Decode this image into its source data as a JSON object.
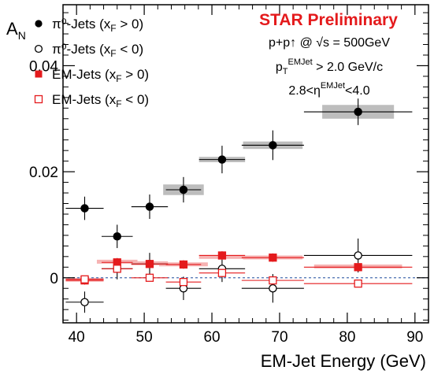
{
  "chart_data": {
    "type": "scatter",
    "title": "",
    "xlabel": "EM-Jet Energy (GeV)",
    "ylabel": "A_N",
    "xlim": [
      38,
      92
    ],
    "ylim": [
      -0.0085,
      0.0515
    ],
    "x_ticks": [
      40,
      50,
      60,
      70,
      80,
      90
    ],
    "y_ticks": [
      0,
      0.02,
      0.04
    ],
    "x_tick_labels": [
      "40",
      "50",
      "60",
      "70",
      "80",
      "90"
    ],
    "y_tick_labels": [
      "0",
      "0.02",
      "0.04"
    ],
    "grid": false,
    "legend_position": "top-left",
    "reference_line": {
      "y": 0,
      "style": "dashed",
      "color": "#4a6fb0"
    },
    "annotations": {
      "title": "STAR Preliminary",
      "title_color": "#e41a1c",
      "line1": "p+p↑ @ √s = 500GeV",
      "line2": "p_T^EMJet > 2.0 GeV/c",
      "line3": "2.8<η^EMJet<4.0"
    },
    "series": [
      {
        "name": "π⁰-Jets (x_F > 0)",
        "legend_main": "π⁰-Jets (x",
        "legend_sub": "F",
        "legend_tail": " > 0)",
        "marker": "circle",
        "filled": true,
        "color": "#000000",
        "points": [
          {
            "x": 41.2,
            "y": 0.0131,
            "xerr": 2.8,
            "yerr": 0.0022
          },
          {
            "x": 46.0,
            "y": 0.0078,
            "xerr": 2.3,
            "yerr": 0.0022
          },
          {
            "x": 50.8,
            "y": 0.0134,
            "xerr": 2.7,
            "yerr": 0.0023
          },
          {
            "x": 55.8,
            "y": 0.0166,
            "xerr": 2.6,
            "yerr": 0.0024
          },
          {
            "x": 61.5,
            "y": 0.0223,
            "xerr": 3.4,
            "yerr": 0.0026
          },
          {
            "x": 69.0,
            "y": 0.025,
            "xerr": 4.6,
            "yerr": 0.0028
          },
          {
            "x": 81.6,
            "y": 0.0313,
            "xerr": 8.0,
            "yerr": 0.0025
          }
        ],
        "sys": [
          {
            "x": 55.8,
            "y": 0.0166,
            "xhalf": 3.0,
            "yhalf": 0.001
          },
          {
            "x": 61.5,
            "y": 0.0223,
            "xhalf": 3.4,
            "yhalf": 0.0005
          },
          {
            "x": 69.0,
            "y": 0.025,
            "xhalf": 4.4,
            "yhalf": 0.0007
          },
          {
            "x": 81.6,
            "y": 0.0313,
            "xhalf": 5.3,
            "yhalf": 0.0013
          }
        ]
      },
      {
        "name": "π⁰-Jets (x_F < 0)",
        "legend_main": "π⁰-Jets (x",
        "legend_sub": "F",
        "legend_tail": " < 0)",
        "marker": "circle",
        "filled": false,
        "color": "#000000",
        "points": [
          {
            "x": 41.2,
            "y": -0.0046,
            "xerr": 2.8,
            "yerr": 0.002
          },
          {
            "x": 46.0,
            "y": 0.0017,
            "xerr": 2.3,
            "yerr": 0.002
          },
          {
            "x": 50.8,
            "y": 0.0026,
            "xerr": 2.7,
            "yerr": 0.0021
          },
          {
            "x": 55.8,
            "y": -0.002,
            "xerr": 2.6,
            "yerr": 0.0022
          },
          {
            "x": 61.5,
            "y": 0.0017,
            "xerr": 3.4,
            "yerr": 0.0025
          },
          {
            "x": 69.0,
            "y": -0.002,
            "xerr": 4.6,
            "yerr": 0.0027
          },
          {
            "x": 81.6,
            "y": 0.0042,
            "xerr": 8.0,
            "yerr": 0.0032
          }
        ],
        "sys": []
      },
      {
        "name": "EM-Jets (x_F > 0)",
        "legend_main": "EM-Jets (x",
        "legend_sub": "F",
        "legend_tail": " > 0)",
        "marker": "square",
        "filled": true,
        "color": "#e41a1c",
        "points": [
          {
            "x": 41.2,
            "y": -0.0005,
            "xerr": 2.8,
            "yerr": 0.0008
          },
          {
            "x": 46.0,
            "y": 0.0029,
            "xerr": 2.3,
            "yerr": 0.0008
          },
          {
            "x": 50.8,
            "y": 0.0026,
            "xerr": 2.7,
            "yerr": 0.0008
          },
          {
            "x": 55.8,
            "y": 0.0025,
            "xerr": 2.6,
            "yerr": 0.0008
          },
          {
            "x": 61.5,
            "y": 0.0042,
            "xerr": 3.4,
            "yerr": 0.0008
          },
          {
            "x": 69.0,
            "y": 0.0038,
            "xerr": 4.6,
            "yerr": 0.0008
          },
          {
            "x": 81.6,
            "y": 0.002,
            "xerr": 8.0,
            "yerr": 0.0008
          }
        ],
        "sys": [
          {
            "x": 41.2,
            "y": -0.0003,
            "xhalf": 2.8,
            "yhalf": 0.0003
          },
          {
            "x": 46.0,
            "y": 0.0031,
            "xhalf": 3.0,
            "yhalf": 0.0003
          },
          {
            "x": 50.8,
            "y": 0.0028,
            "xhalf": 2.7,
            "yhalf": 0.0003
          },
          {
            "x": 55.8,
            "y": 0.0026,
            "xhalf": 3.6,
            "yhalf": 0.0003
          },
          {
            "x": 61.5,
            "y": 0.004,
            "xhalf": 3.4,
            "yhalf": 0.0003
          },
          {
            "x": 69.0,
            "y": 0.0039,
            "xhalf": 4.4,
            "yhalf": 0.0003
          },
          {
            "x": 81.6,
            "y": 0.0022,
            "xhalf": 6.5,
            "yhalf": 0.0003
          }
        ]
      },
      {
        "name": "EM-Jets (x_F < 0)",
        "legend_main": "EM-Jets (x",
        "legend_sub": "F",
        "legend_tail": " < 0)",
        "marker": "square",
        "filled": false,
        "color": "#e41a1c",
        "points": [
          {
            "x": 41.2,
            "y": -0.0003,
            "xerr": 2.8,
            "yerr": 0.0007
          },
          {
            "x": 46.0,
            "y": 0.0017,
            "xerr": 2.3,
            "yerr": 0.0007
          },
          {
            "x": 50.8,
            "y": 0.0,
            "xerr": 2.7,
            "yerr": 0.0007
          },
          {
            "x": 55.8,
            "y": -0.0008,
            "xerr": 2.6,
            "yerr": 0.0007
          },
          {
            "x": 61.5,
            "y": 0.0009,
            "xerr": 3.4,
            "yerr": 0.0007
          },
          {
            "x": 69.0,
            "y": -0.0005,
            "xerr": 4.6,
            "yerr": 0.0007
          },
          {
            "x": 81.6,
            "y": -0.0011,
            "xerr": 8.0,
            "yerr": 0.0007
          }
        ],
        "sys": []
      }
    ]
  }
}
